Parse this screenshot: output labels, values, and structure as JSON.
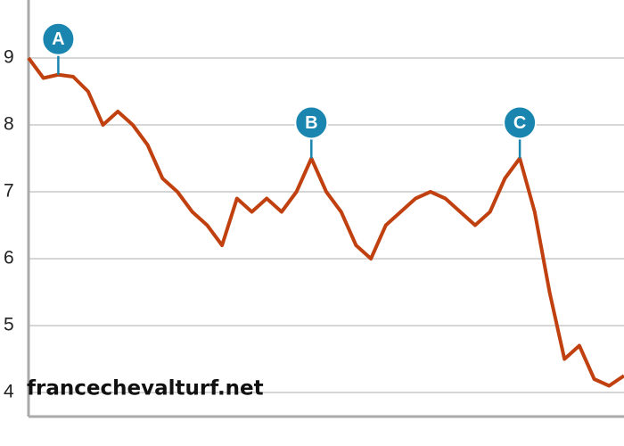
{
  "chart_data": {
    "type": "line",
    "categories": [
      null,
      null,
      null,
      null,
      null,
      null,
      null,
      null,
      null,
      null,
      null,
      null,
      null,
      null,
      null,
      null,
      null,
      null,
      null,
      null,
      null,
      null,
      null,
      null,
      null,
      null,
      null,
      null,
      null,
      null,
      null,
      null,
      null,
      null,
      null,
      null,
      null,
      null,
      null,
      null,
      null
    ],
    "series": [
      {
        "color": "#c0410f",
        "values": [
          9.0,
          8.7,
          8.75,
          8.72,
          8.5,
          8.0,
          8.2,
          8.0,
          7.7,
          7.2,
          7.0,
          6.7,
          6.5,
          6.2,
          6.9,
          6.7,
          6.9,
          6.7,
          7.0,
          7.5,
          7.0,
          6.7,
          6.2,
          6.0,
          6.5,
          6.7,
          6.9,
          7.0,
          6.9,
          6.7,
          6.5,
          6.7,
          7.2,
          7.5,
          6.7,
          5.5,
          4.5,
          4.7,
          4.2,
          4.1,
          4.25
        ]
      }
    ],
    "ylim": [
      3.6,
      9.6
    ],
    "yticks": [
      4,
      5,
      6,
      7,
      8,
      9
    ],
    "grid": true,
    "annotations": [
      {
        "text": "A",
        "category_index": 2,
        "color": "#1a86b0"
      },
      {
        "text": "B",
        "category_index": 19,
        "color": "#1a86b0"
      },
      {
        "text": "C",
        "category_index": 33,
        "color": "#1a86b0"
      }
    ],
    "watermark": "francechevalturf.net"
  }
}
